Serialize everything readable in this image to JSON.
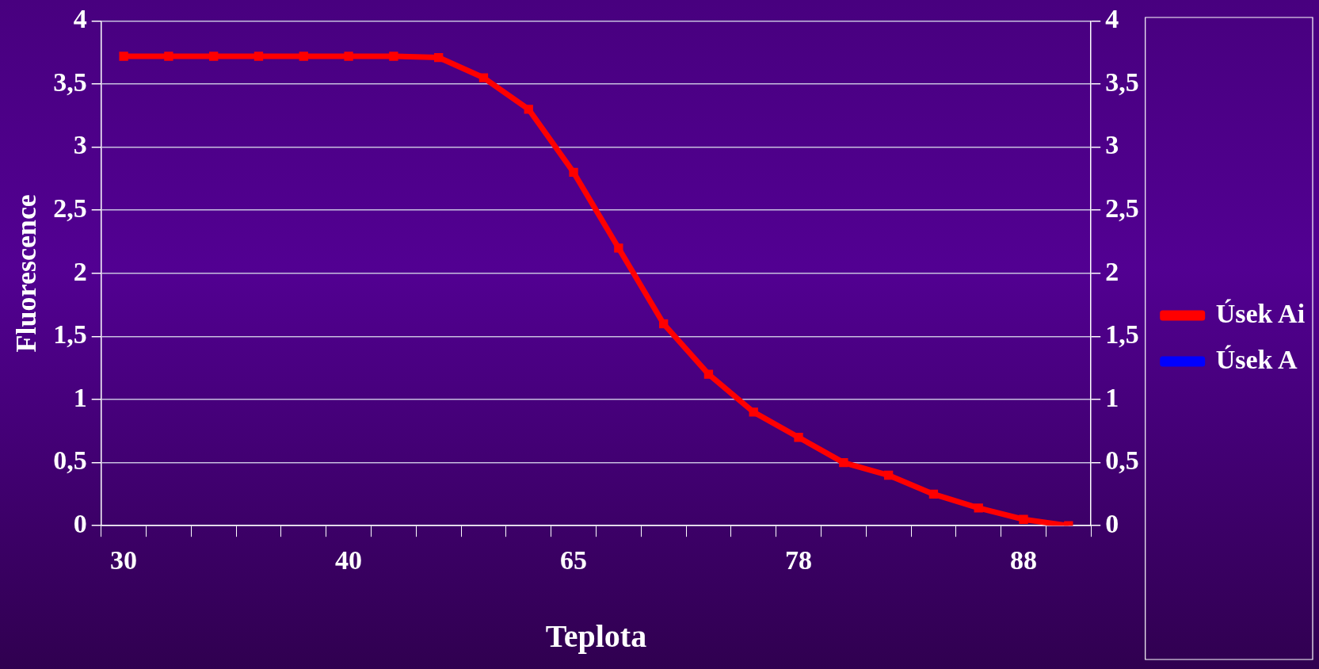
{
  "chart_data": {
    "type": "line",
    "xlabel": "Teplota",
    "ylabel": "Fluorescence",
    "categories": [
      "30",
      null,
      null,
      null,
      null,
      "40",
      null,
      null,
      null,
      null,
      "65",
      null,
      null,
      null,
      null,
      "78",
      null,
      null,
      null,
      null,
      "88",
      null
    ],
    "series": [
      {
        "name": "Úsek A",
        "color": "#0000ff",
        "values": [
          null,
          null,
          null,
          null,
          null,
          null,
          null,
          null,
          null,
          null,
          null,
          null,
          null,
          null,
          null,
          null,
          null,
          null,
          null,
          null,
          null,
          null
        ]
      },
      {
        "name": "Úsek Ai",
        "color": "#ff0000",
        "values": [
          3.72,
          3.72,
          3.72,
          3.72,
          3.72,
          3.72,
          3.72,
          3.71,
          3.55,
          3.3,
          2.8,
          2.2,
          1.6,
          1.2,
          0.9,
          0.7,
          0.5,
          0.4,
          0.25,
          0.14,
          0.05,
          0
        ]
      }
    ],
    "ylim": [
      0,
      4
    ],
    "yticks": [
      0,
      {
        "value": 0.5,
        "label": "0,5"
      },
      1,
      {
        "value": 1.5,
        "label": "1,5"
      },
      2,
      {
        "value": 2.5,
        "label": "2,5"
      },
      3,
      {
        "value": 3.5,
        "label": "3,5"
      },
      4
    ],
    "y2lim": [
      0,
      4
    ],
    "y2ticks": [
      0,
      {
        "value": 0.5,
        "label": "0,5"
      },
      1,
      {
        "value": 1.5,
        "label": "1,5"
      },
      2,
      {
        "value": 2.5,
        "label": "2,5"
      },
      3,
      {
        "value": 3.5,
        "label": "3,5"
      },
      4
    ],
    "grid": "y",
    "legend": "right",
    "marker": "square",
    "line_style": "solid"
  }
}
